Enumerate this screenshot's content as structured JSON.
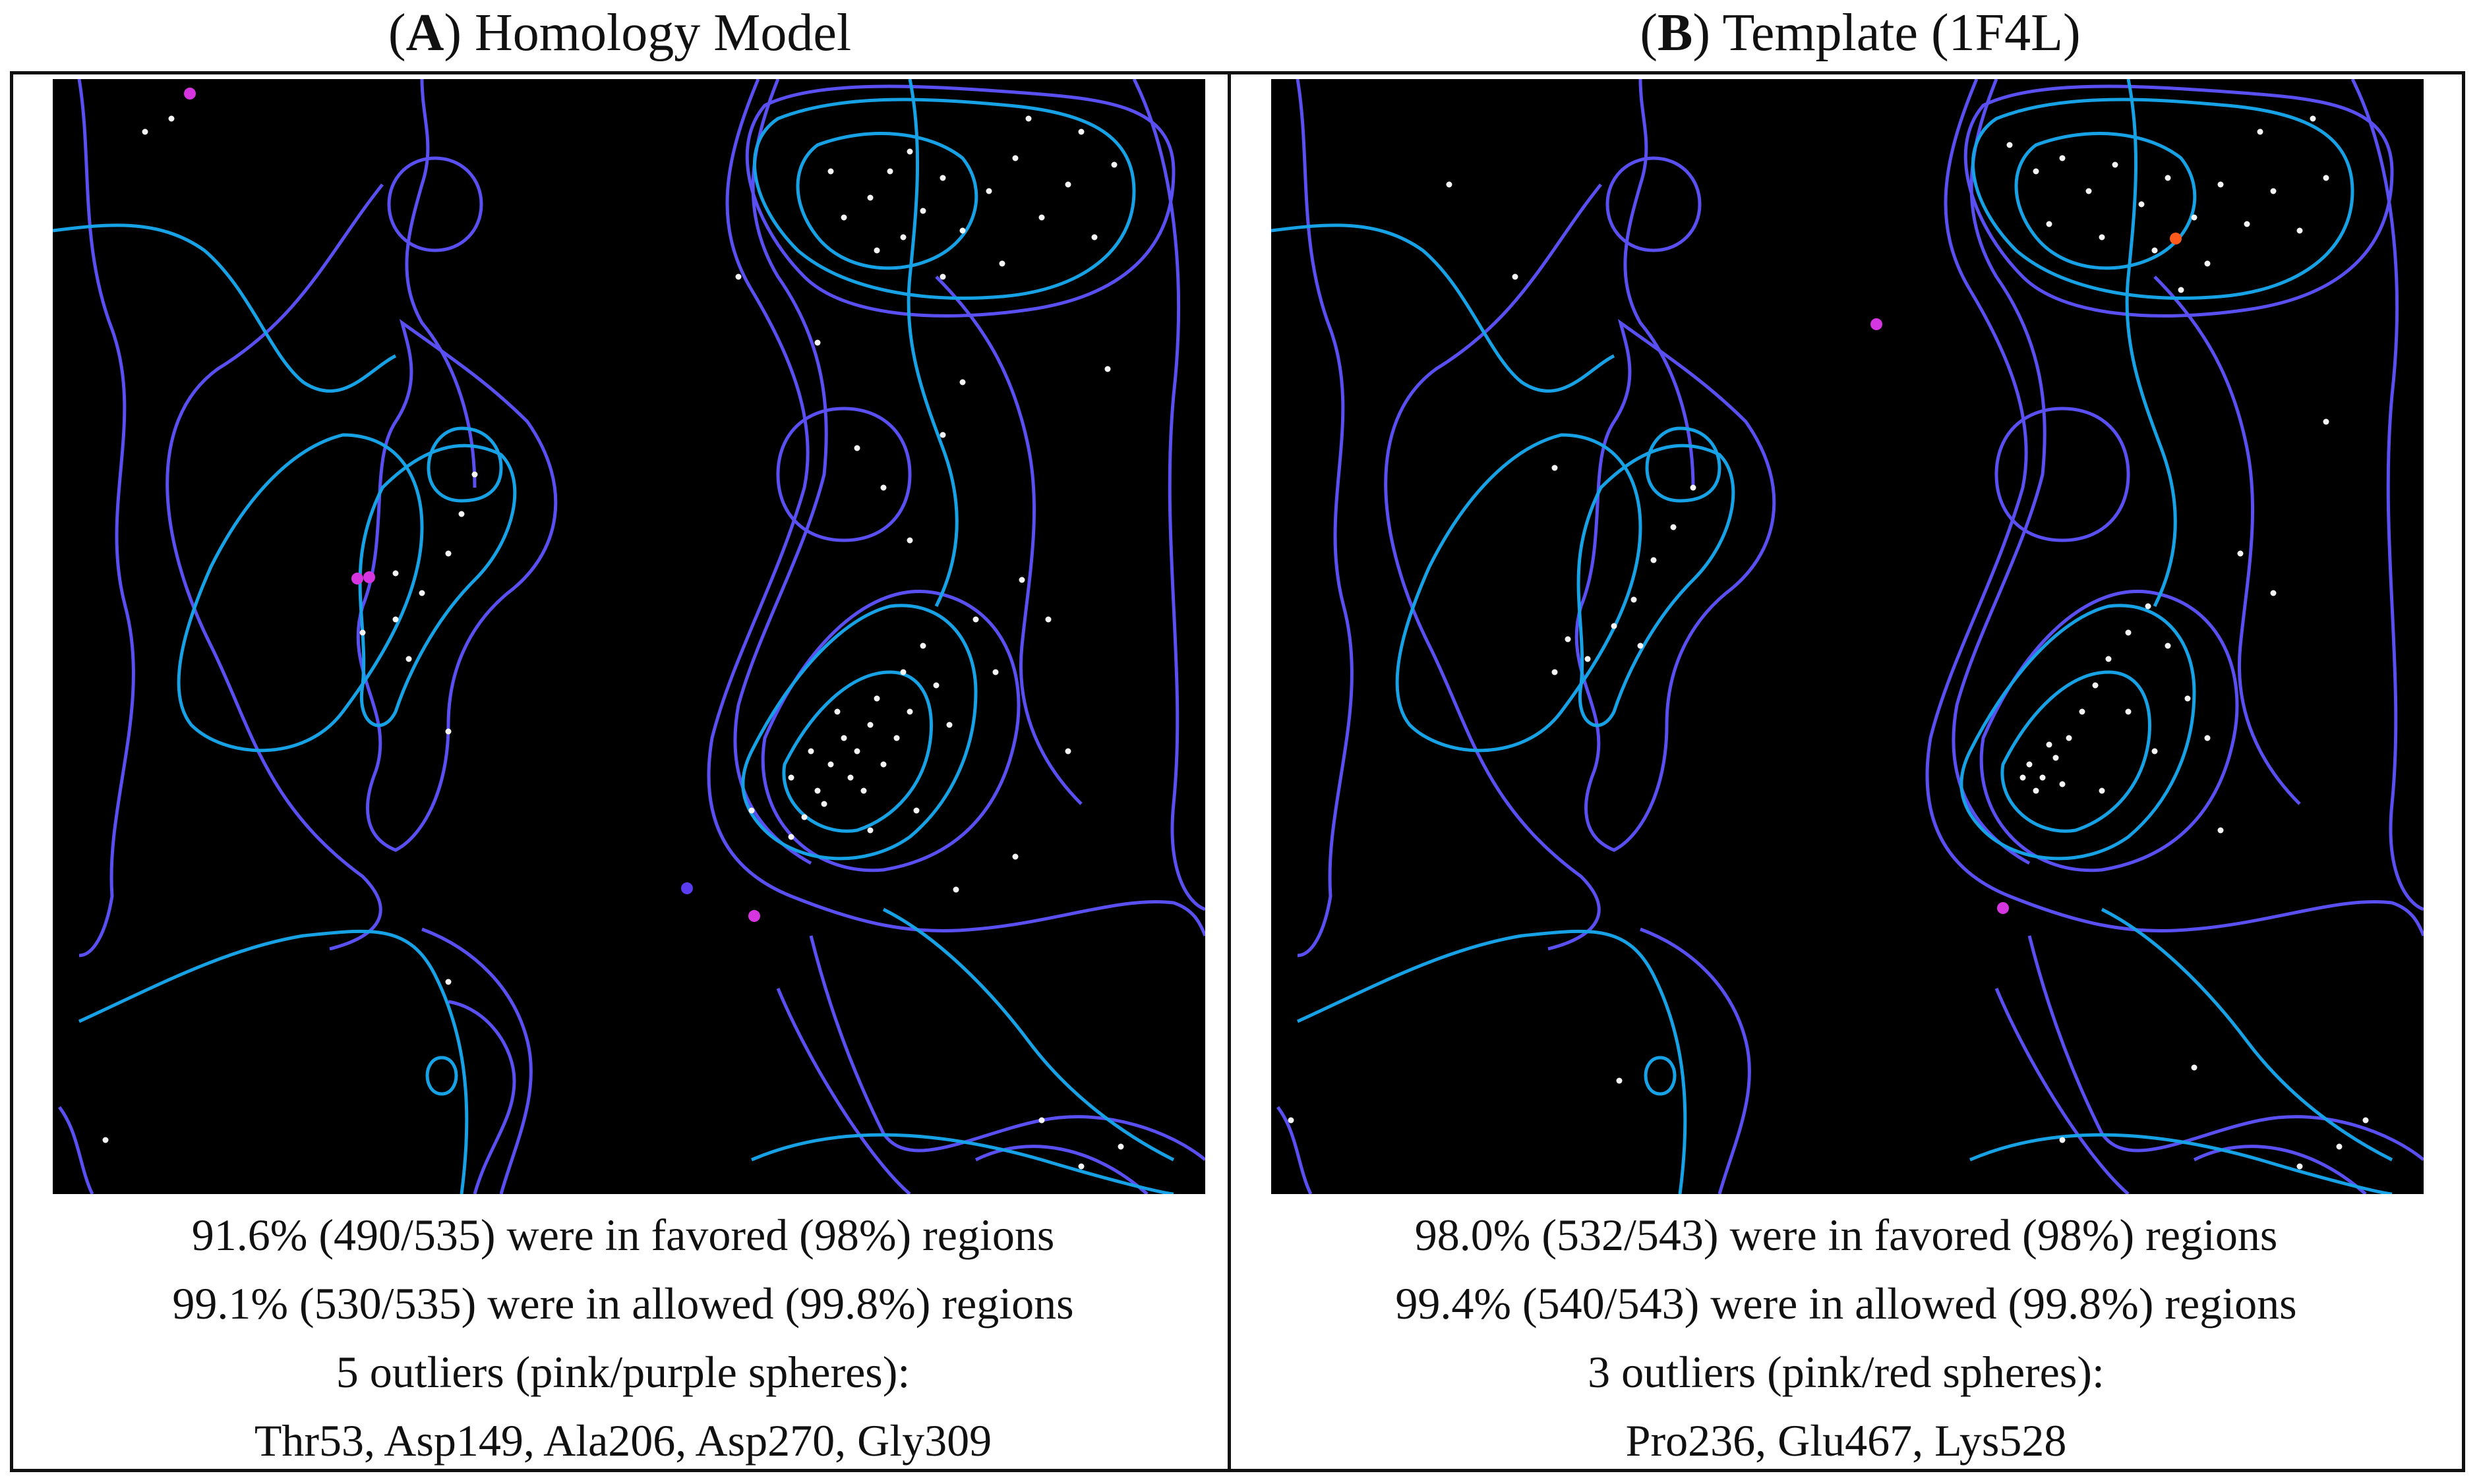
{
  "panels": [
    {
      "id": "A",
      "title_letter": "A",
      "title_text": "Homology Model",
      "stats": {
        "favored": "91.6% (490/535) were in favored (98%) regions",
        "allowed": "99.1% (530/535) were in allowed (99.8%) regions",
        "outliers_summary": "5 outliers (pink/purple spheres):",
        "outlier_residues": "Thr53, Asp149, Ala206, Asp270, Gly309"
      }
    },
    {
      "id": "B",
      "title_letter": "B",
      "title_text": "Template (1F4L)",
      "stats": {
        "favored": "98.0% (532/543) were in favored (98%) regions",
        "allowed": "99.4% (540/543) were in allowed (99.8%) regions",
        "outliers_summary": "3 outliers (pink/red spheres):",
        "outlier_residues": "Pro236, Glu467, Lys528"
      }
    }
  ],
  "colors": {
    "plot_background": "#000000",
    "allowed_contour": "#5a4ff0",
    "favored_contour": "#17a2e6",
    "residue_point": "#f4f4f4",
    "outlier_pink": "#d636e0",
    "outlier_purple": "#5b3cf0",
    "outlier_red": "#ff5a1e"
  }
}
